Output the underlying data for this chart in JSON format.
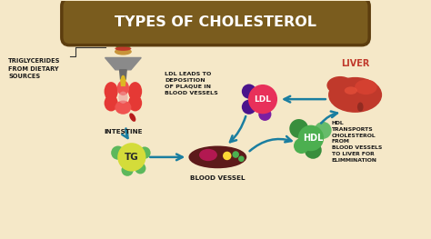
{
  "title": "TYPES OF CHOLESTEROL",
  "bg_color": "#F5E8C8",
  "labels": {
    "triglycerides": "TRIGLYCERIDES\nFROM DIETARY\nSOURCES",
    "intestine": "INTESTINE",
    "tg": "TG",
    "blood_vessel": "BLOOD VESSEL",
    "ldl_desc": "LDL LEADS TO\nDEPOSITION\nOF PLAQUE IN\nBLOOD VESSELS",
    "ldl": "LDL",
    "liver": "LIVER",
    "hdl": "HDL",
    "hdl_desc": "HDL\nTRANSPORTS\nCHOLESTEROL\nFROM\nBLOOD VESSELS\nTO LIVER FOR\nELIMMINATION"
  },
  "colors": {
    "title_fill": "#7A5C1E",
    "title_edge": "#5C3D0E",
    "title_text": "#FFFFFF",
    "arrow_teal": "#1A7EA0",
    "tg_yellow": "#D4DC3A",
    "tg_green": "#5CB85C",
    "tg_text": "#2B2B2B",
    "hdl_green1": "#4CAF50",
    "hdl_green2": "#388E3C",
    "hdl_green3": "#66BB6A",
    "ldl_pink": "#E8305A",
    "ldl_purple": "#7B1FA2",
    "ldl_darkpurple": "#4A148C",
    "liver_red": "#C0392B",
    "liver_dark": "#922B21",
    "liver_label": "#C0392B",
    "intestine_red": "#E53935",
    "intestine_light": "#EF9A9A",
    "intestine_dark": "#B71C1C",
    "bv_dark": "#5D1A1A",
    "bv_pink": "#C2185B",
    "bv_yellow": "#FDD835",
    "bv_green": "#4CAF50",
    "funnel_gray": "#8A8A8A",
    "funnel_dark": "#6A6A6A",
    "funnel_yellow": "#DDB823",
    "food_tan": "#D4A85A",
    "food_green": "#5D8A2A",
    "food_red": "#C0392B"
  }
}
